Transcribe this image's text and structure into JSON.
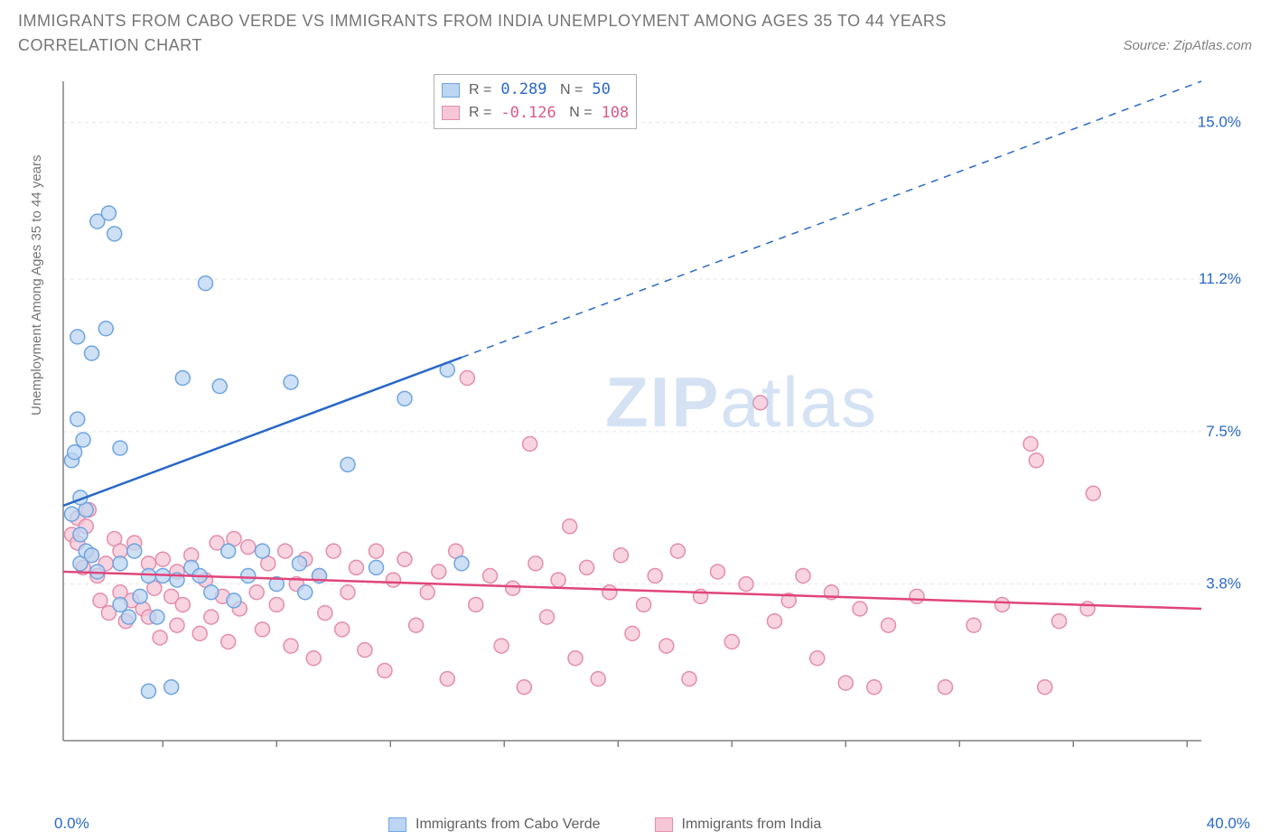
{
  "title": "IMMIGRANTS FROM CABO VERDE VS IMMIGRANTS FROM INDIA UNEMPLOYMENT AMONG AGES 35 TO 44 YEARS CORRELATION CHART",
  "source": "Source: ZipAtlas.com",
  "watermark_zip": "ZIP",
  "watermark_atlas": "atlas",
  "chart": {
    "type": "scatter",
    "ylabel": "Unemployment Among Ages 35 to 44 years",
    "xlim": [
      0,
      40
    ],
    "ylim": [
      0,
      16
    ],
    "x_min_label": "0.0%",
    "x_max_label": "40.0%",
    "y_ticks": [
      {
        "v": 15.0,
        "label": "15.0%"
      },
      {
        "v": 11.2,
        "label": "11.2%"
      },
      {
        "v": 7.5,
        "label": "7.5%"
      },
      {
        "v": 3.8,
        "label": "3.8%"
      }
    ],
    "x_tick_positions": [
      3.5,
      7.5,
      11.5,
      15.5,
      19.5,
      23.5,
      27.5,
      31.5,
      35.5,
      39.5
    ],
    "grid_color": "#e6e6e6",
    "background": "#ffffff",
    "axis_color": "#808080",
    "series": [
      {
        "name": "Immigrants from Cabo Verde",
        "key": "cabo",
        "color_fill": "#bcd5f2",
        "color_stroke": "#6fa4e0",
        "R": "0.289",
        "N": "50",
        "trend": {
          "x1": 0,
          "y1": 5.7,
          "x2": 14,
          "y2": 9.3,
          "ext_x2": 40,
          "ext_y2": 16.0,
          "color": "#2968c8"
        },
        "points": [
          [
            0.3,
            5.5
          ],
          [
            0.3,
            6.8
          ],
          [
            0.4,
            7.0
          ],
          [
            0.5,
            7.8
          ],
          [
            0.5,
            9.8
          ],
          [
            0.6,
            5.0
          ],
          [
            0.6,
            4.3
          ],
          [
            0.7,
            7.3
          ],
          [
            0.8,
            4.6
          ],
          [
            0.8,
            5.6
          ],
          [
            1.0,
            9.4
          ],
          [
            1.0,
            4.5
          ],
          [
            1.2,
            4.1
          ],
          [
            1.2,
            12.6
          ],
          [
            1.5,
            10.0
          ],
          [
            1.6,
            12.8
          ],
          [
            1.8,
            12.3
          ],
          [
            2.0,
            7.1
          ],
          [
            2.0,
            4.3
          ],
          [
            2.0,
            3.3
          ],
          [
            2.3,
            3.0
          ],
          [
            2.5,
            4.6
          ],
          [
            2.7,
            3.5
          ],
          [
            3.0,
            1.2
          ],
          [
            3.0,
            4.0
          ],
          [
            3.3,
            3.0
          ],
          [
            3.5,
            4.0
          ],
          [
            3.8,
            1.3
          ],
          [
            4.0,
            3.9
          ],
          [
            4.2,
            8.8
          ],
          [
            4.5,
            4.2
          ],
          [
            4.8,
            4.0
          ],
          [
            5.0,
            11.1
          ],
          [
            5.2,
            3.6
          ],
          [
            5.5,
            8.6
          ],
          [
            5.8,
            4.6
          ],
          [
            6.0,
            3.4
          ],
          [
            6.5,
            4.0
          ],
          [
            7.0,
            4.6
          ],
          [
            7.5,
            3.8
          ],
          [
            8.0,
            8.7
          ],
          [
            8.3,
            4.3
          ],
          [
            8.5,
            3.6
          ],
          [
            9.0,
            4.0
          ],
          [
            10.0,
            6.7
          ],
          [
            11.0,
            4.2
          ],
          [
            12.0,
            8.3
          ],
          [
            13.5,
            9.0
          ],
          [
            14.0,
            4.3
          ],
          [
            0.6,
            5.9
          ]
        ]
      },
      {
        "name": "Immigrants from India",
        "key": "india",
        "color_fill": "#f6c6d6",
        "color_stroke": "#e38daa",
        "R": "-0.126",
        "N": "108",
        "trend": {
          "x1": 0,
          "y1": 4.1,
          "x2": 40,
          "y2": 3.2,
          "color": "#e0457a"
        },
        "points": [
          [
            0.3,
            5.0
          ],
          [
            0.5,
            5.4
          ],
          [
            0.5,
            4.8
          ],
          [
            0.7,
            4.2
          ],
          [
            0.8,
            5.2
          ],
          [
            0.9,
            5.6
          ],
          [
            1.0,
            4.5
          ],
          [
            1.2,
            4.0
          ],
          [
            1.3,
            3.4
          ],
          [
            1.5,
            4.3
          ],
          [
            1.6,
            3.1
          ],
          [
            1.8,
            4.9
          ],
          [
            2.0,
            3.6
          ],
          [
            2.0,
            4.6
          ],
          [
            2.2,
            2.9
          ],
          [
            2.4,
            3.4
          ],
          [
            2.5,
            4.8
          ],
          [
            2.8,
            3.2
          ],
          [
            3.0,
            3.0
          ],
          [
            3.0,
            4.3
          ],
          [
            3.2,
            3.7
          ],
          [
            3.4,
            2.5
          ],
          [
            3.5,
            4.4
          ],
          [
            3.8,
            3.5
          ],
          [
            4.0,
            2.8
          ],
          [
            4.0,
            4.1
          ],
          [
            4.2,
            3.3
          ],
          [
            4.5,
            4.5
          ],
          [
            4.8,
            2.6
          ],
          [
            5.0,
            3.9
          ],
          [
            5.2,
            3.0
          ],
          [
            5.4,
            4.8
          ],
          [
            5.6,
            3.5
          ],
          [
            5.8,
            2.4
          ],
          [
            6.0,
            4.9
          ],
          [
            6.2,
            3.2
          ],
          [
            6.5,
            4.7
          ],
          [
            6.8,
            3.6
          ],
          [
            7.0,
            2.7
          ],
          [
            7.2,
            4.3
          ],
          [
            7.5,
            3.3
          ],
          [
            7.8,
            4.6
          ],
          [
            8.0,
            2.3
          ],
          [
            8.2,
            3.8
          ],
          [
            8.5,
            4.4
          ],
          [
            8.8,
            2.0
          ],
          [
            9.0,
            4.0
          ],
          [
            9.2,
            3.1
          ],
          [
            9.5,
            4.6
          ],
          [
            9.8,
            2.7
          ],
          [
            10.0,
            3.6
          ],
          [
            10.3,
            4.2
          ],
          [
            10.6,
            2.2
          ],
          [
            11.0,
            4.6
          ],
          [
            11.3,
            1.7
          ],
          [
            11.6,
            3.9
          ],
          [
            12.0,
            4.4
          ],
          [
            12.4,
            2.8
          ],
          [
            12.8,
            3.6
          ],
          [
            13.2,
            4.1
          ],
          [
            13.5,
            1.5
          ],
          [
            13.8,
            4.6
          ],
          [
            14.2,
            8.8
          ],
          [
            14.5,
            3.3
          ],
          [
            15.0,
            4.0
          ],
          [
            15.4,
            2.3
          ],
          [
            15.8,
            3.7
          ],
          [
            16.2,
            1.3
          ],
          [
            16.4,
            7.2
          ],
          [
            16.6,
            4.3
          ],
          [
            17.0,
            3.0
          ],
          [
            17.4,
            3.9
          ],
          [
            17.8,
            5.2
          ],
          [
            18.0,
            2.0
          ],
          [
            18.4,
            4.2
          ],
          [
            18.8,
            1.5
          ],
          [
            19.2,
            3.6
          ],
          [
            19.6,
            4.5
          ],
          [
            20.0,
            2.6
          ],
          [
            20.4,
            3.3
          ],
          [
            20.8,
            4.0
          ],
          [
            21.2,
            2.3
          ],
          [
            21.6,
            4.6
          ],
          [
            22.0,
            1.5
          ],
          [
            22.4,
            3.5
          ],
          [
            23.0,
            4.1
          ],
          [
            23.5,
            2.4
          ],
          [
            24.0,
            3.8
          ],
          [
            24.5,
            8.2
          ],
          [
            25.0,
            2.9
          ],
          [
            25.5,
            3.4
          ],
          [
            26.0,
            4.0
          ],
          [
            26.5,
            2.0
          ],
          [
            27.0,
            3.6
          ],
          [
            27.5,
            1.4
          ],
          [
            28.0,
            3.2
          ],
          [
            28.5,
            1.3
          ],
          [
            29.0,
            2.8
          ],
          [
            30.0,
            3.5
          ],
          [
            31.0,
            1.3
          ],
          [
            32.0,
            2.8
          ],
          [
            33.0,
            3.3
          ],
          [
            34.0,
            7.2
          ],
          [
            34.2,
            6.8
          ],
          [
            34.5,
            1.3
          ],
          [
            35.0,
            2.9
          ],
          [
            36.0,
            3.2
          ],
          [
            36.2,
            6.0
          ]
        ]
      }
    ],
    "legend_bottom": [
      {
        "label": "Immigrants from Cabo Verde",
        "fill": "#bcd5f2",
        "stroke": "#6fa4e0"
      },
      {
        "label": "Immigrants from India",
        "fill": "#f6c6d6",
        "stroke": "#e38daa"
      }
    ],
    "marker_radius": 8,
    "marker_opacity": 0.75,
    "line_width": 2.5
  }
}
